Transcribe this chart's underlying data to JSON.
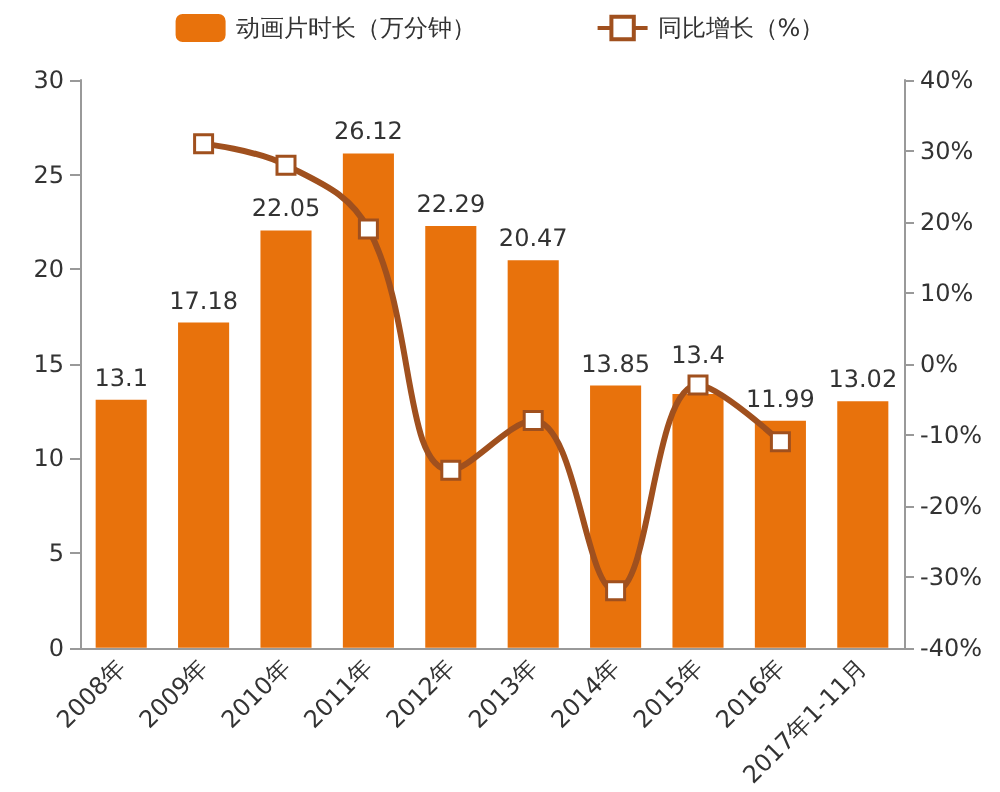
{
  "chart_data": {
    "type": "bar",
    "categories": [
      "2008年",
      "2009年",
      "2010年",
      "2011年",
      "2012年",
      "2013年",
      "2014年",
      "2015年",
      "2016年",
      "2017年1-11月"
    ],
    "series": [
      {
        "name": "动画片时长（万分钟）",
        "color": "#e8720c",
        "values": [
          13.1,
          17.18,
          22.05,
          26.12,
          22.29,
          20.47,
          13.85,
          13.4,
          11.99,
          13.02
        ],
        "data_labels": true
      },
      {
        "name": "同比增长（%）",
        "type": "line",
        "axis": "y2",
        "color": "#a0501e",
        "marker": "square",
        "values": [
          null,
          31,
          28,
          19,
          -15,
          -8,
          -32,
          -3,
          -11,
          null
        ]
      }
    ],
    "ylim": [
      0,
      30
    ],
    "yticks": [
      0,
      5,
      10,
      15,
      20,
      25,
      30
    ],
    "y2lim": [
      -40,
      40
    ],
    "y2ticks": [
      {
        "value": -40,
        "label": "-40%"
      },
      {
        "value": -30,
        "label": "-30%"
      },
      {
        "value": -20,
        "label": "-20%"
      },
      {
        "value": -10,
        "label": "-10%"
      },
      {
        "value": 0,
        "label": "0%"
      },
      {
        "value": 10,
        "label": "10%"
      },
      {
        "value": 20,
        "label": "20%"
      },
      {
        "value": 30,
        "label": "30%"
      },
      {
        "value": 40,
        "label": "40%"
      }
    ],
    "legend": "top",
    "grid": false
  }
}
